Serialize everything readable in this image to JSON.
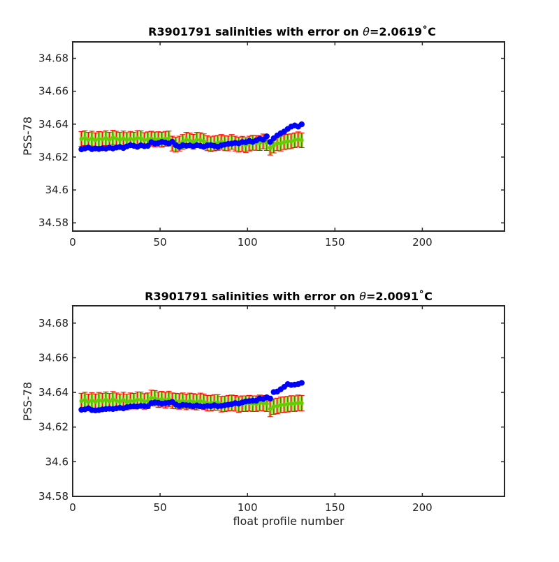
{
  "chart_data": [
    {
      "type": "scatter",
      "title": "R3901791 salinities with error on θ=2.0619˚C",
      "title_parts": {
        "prefix": "R3901791 salinities with error on ",
        "symbol": "θ",
        "suffix": "=2.0619˚C"
      },
      "xlabel": "",
      "ylabel": "PSS-78",
      "xlim": [
        0,
        247
      ],
      "ylim": [
        34.575,
        34.69
      ],
      "xticks": [
        0,
        50,
        100,
        150,
        200
      ],
      "yticks": [
        34.58,
        34.6,
        34.62,
        34.64,
        34.66,
        34.68
      ],
      "ytick_labels": [
        "34.58",
        "34.6",
        "34.62",
        "34.64",
        "34.66",
        "34.68"
      ],
      "grid": false,
      "colors": {
        "float": "#0000ff",
        "mapped": "#66cc00",
        "error": "#ff0000",
        "mapped_bar": "#66cc00"
      },
      "x": [
        5,
        7,
        9,
        11,
        13,
        15,
        17,
        19,
        21,
        23,
        25,
        27,
        29,
        31,
        33,
        35,
        37,
        39,
        41,
        43,
        45,
        47,
        49,
        51,
        53,
        55,
        57,
        59,
        61,
        63,
        65,
        67,
        69,
        71,
        73,
        75,
        77,
        79,
        81,
        83,
        85,
        87,
        89,
        91,
        93,
        95,
        97,
        99,
        101,
        103,
        105,
        107,
        109,
        111,
        113,
        115,
        117,
        119,
        121,
        123,
        125,
        127,
        129,
        131
      ],
      "series": [
        {
          "role": "float",
          "values": [
            34.6247,
            34.6252,
            34.6258,
            34.6248,
            34.6252,
            34.6249,
            34.6253,
            34.6251,
            34.6257,
            34.6252,
            34.6258,
            34.6261,
            34.6255,
            34.6265,
            34.6272,
            34.6268,
            34.6262,
            34.6271,
            34.6266,
            34.6268,
            34.629,
            34.6282,
            34.6285,
            34.6292,
            34.6288,
            34.6282,
            34.6293,
            34.6272,
            34.6262,
            34.6272,
            34.6268,
            34.6271,
            34.6265,
            34.6272,
            34.6268,
            34.6262,
            34.6271,
            34.6272,
            34.6268,
            34.6262,
            34.6271,
            34.6276,
            34.628,
            34.6282,
            34.6286,
            34.6283,
            34.6291,
            34.629,
            34.6298,
            34.6292,
            34.6301,
            34.6312,
            34.6305,
            34.6326,
            34.6292,
            34.6314,
            34.6331,
            34.6345,
            34.6355,
            34.6371,
            34.6385,
            34.6392,
            34.6385,
            34.6399
          ]
        },
        {
          "role": "mapped",
          "values": [
            34.631,
            34.6315,
            34.6305,
            34.6312,
            34.6302,
            34.631,
            34.6308,
            34.6315,
            34.6306,
            34.6318,
            34.6312,
            34.6305,
            34.6313,
            34.6304,
            34.6311,
            34.6306,
            34.6316,
            34.6314,
            34.6303,
            34.6308,
            34.6312,
            34.6307,
            34.6309,
            34.6306,
            34.6311,
            34.6313,
            34.6282,
            34.6275,
            34.6282,
            34.6292,
            34.6305,
            34.6301,
            34.6293,
            34.6305,
            34.6303,
            34.6296,
            34.6284,
            34.6278,
            34.6283,
            34.6286,
            34.6292,
            34.6284,
            34.6283,
            34.6292,
            34.6282,
            34.6275,
            34.6281,
            34.6273,
            34.6282,
            34.6287,
            34.6286,
            34.6285,
            34.6295,
            34.6285,
            34.6257,
            34.627,
            34.6284,
            34.6282,
            34.6291,
            34.6294,
            34.6296,
            34.6302,
            34.6308,
            34.6302
          ]
        },
        {
          "role": "error",
          "values": [
            0.0045,
            0.0045,
            0.0045,
            0.0045,
            0.0045,
            0.0045,
            0.0045,
            0.0045,
            0.0045,
            0.0045,
            0.0045,
            0.0045,
            0.0045,
            0.0045,
            0.0045,
            0.0045,
            0.0045,
            0.0045,
            0.0045,
            0.0045,
            0.0045,
            0.0045,
            0.0045,
            0.0045,
            0.0045,
            0.0045,
            0.0045,
            0.0045,
            0.0045,
            0.0045,
            0.0045,
            0.0045,
            0.0045,
            0.0045,
            0.0045,
            0.0045,
            0.0045,
            0.0045,
            0.0045,
            0.0045,
            0.0045,
            0.0045,
            0.0045,
            0.0045,
            0.0045,
            0.0045,
            0.0045,
            0.0045,
            0.0045,
            0.0045,
            0.0045,
            0.0045,
            0.0045,
            0.0045,
            0.0045,
            0.0045,
            0.0045,
            0.0045,
            0.0045,
            0.0045,
            0.0045,
            0.0045,
            0.0045,
            0.0045
          ]
        }
      ]
    },
    {
      "type": "scatter",
      "title": "R3901791 salinities with error on θ=2.0091˚C",
      "title_parts": {
        "prefix": "R3901791 salinities with error on ",
        "symbol": "θ",
        "suffix": "=2.0091˚C"
      },
      "xlabel": "float profile number",
      "ylabel": "PSS-78",
      "xlim": [
        0,
        247
      ],
      "ylim": [
        34.58,
        34.69
      ],
      "xticks": [
        0,
        50,
        100,
        150,
        200
      ],
      "yticks": [
        34.58,
        34.6,
        34.62,
        34.64,
        34.66,
        34.68
      ],
      "ytick_labels": [
        "34.58",
        "34.6",
        "34.62",
        "34.64",
        "34.66",
        "34.68"
      ],
      "grid": false,
      "colors": {
        "float": "#0000ff",
        "mapped": "#66cc00",
        "error": "#ff0000",
        "mapped_bar": "#66cc00"
      },
      "x": [
        5,
        7,
        9,
        11,
        13,
        15,
        17,
        19,
        21,
        23,
        25,
        27,
        29,
        31,
        33,
        35,
        37,
        39,
        41,
        43,
        45,
        47,
        49,
        51,
        53,
        55,
        57,
        59,
        61,
        63,
        65,
        67,
        69,
        71,
        73,
        75,
        77,
        79,
        81,
        83,
        85,
        87,
        89,
        91,
        93,
        95,
        97,
        99,
        101,
        103,
        105,
        107,
        109,
        111,
        113,
        115,
        117,
        119,
        121,
        123,
        125,
        127,
        129,
        131
      ],
      "series": [
        {
          "role": "float",
          "values": [
            34.63,
            34.6302,
            34.6308,
            34.6298,
            34.6296,
            34.6298,
            34.6302,
            34.6304,
            34.6306,
            34.6304,
            34.6308,
            34.6311,
            34.6308,
            34.6315,
            34.6318,
            34.632,
            34.6318,
            34.6322,
            34.6321,
            34.632,
            34.6338,
            34.6342,
            34.634,
            34.6335,
            34.6338,
            34.634,
            34.6345,
            34.633,
            34.6322,
            34.6328,
            34.6326,
            34.6325,
            34.632,
            34.6325,
            34.632,
            34.6318,
            34.6322,
            34.632,
            34.6326,
            34.632,
            34.6322,
            34.6326,
            34.6329,
            34.6332,
            34.6338,
            34.6335,
            34.6342,
            34.6348,
            34.635,
            34.6352,
            34.6352,
            34.6365,
            34.6362,
            34.6372,
            34.6365,
            34.6402,
            34.6405,
            34.6418,
            34.6432,
            34.6448,
            34.6443,
            34.6445,
            34.6448,
            34.6455
          ]
        },
        {
          "role": "mapped",
          "values": [
            34.635,
            34.6356,
            34.6345,
            34.6354,
            34.6346,
            34.6355,
            34.635,
            34.6358,
            34.6349,
            34.636,
            34.6352,
            34.6346,
            34.6356,
            34.6344,
            34.6352,
            34.6349,
            34.6358,
            34.6357,
            34.6348,
            34.6352,
            34.6368,
            34.6366,
            34.6358,
            34.6361,
            34.6355,
            34.6362,
            34.6352,
            34.635,
            34.6348,
            34.6352,
            34.6345,
            34.6351,
            34.6348,
            34.6344,
            34.6351,
            34.6346,
            34.6338,
            34.6338,
            34.6342,
            34.6342,
            34.6332,
            34.6334,
            34.6338,
            34.634,
            34.6337,
            34.633,
            34.6335,
            34.6335,
            34.6338,
            34.6335,
            34.6335,
            34.634,
            34.6338,
            34.6335,
            34.6305,
            34.6318,
            34.6322,
            34.6328,
            34.633,
            34.6332,
            34.6336,
            34.6335,
            34.634,
            34.6338
          ]
        },
        {
          "role": "error",
          "values": [
            0.0045,
            0.0045,
            0.0045,
            0.0045,
            0.0045,
            0.0045,
            0.0045,
            0.0045,
            0.0045,
            0.0045,
            0.0045,
            0.0045,
            0.0045,
            0.0045,
            0.0045,
            0.0045,
            0.0045,
            0.0045,
            0.0045,
            0.0045,
            0.0045,
            0.0045,
            0.0045,
            0.0045,
            0.0045,
            0.0045,
            0.0045,
            0.0045,
            0.0045,
            0.0045,
            0.0045,
            0.0045,
            0.0045,
            0.0045,
            0.0045,
            0.0045,
            0.0045,
            0.0045,
            0.0045,
            0.0045,
            0.0045,
            0.0045,
            0.0045,
            0.0045,
            0.0045,
            0.0045,
            0.0045,
            0.0045,
            0.0045,
            0.0045,
            0.0045,
            0.0045,
            0.0045,
            0.0045,
            0.0045,
            0.0045,
            0.0045,
            0.0045,
            0.0045,
            0.0045,
            0.0045,
            0.0045,
            0.0045,
            0.0045
          ]
        }
      ]
    }
  ]
}
